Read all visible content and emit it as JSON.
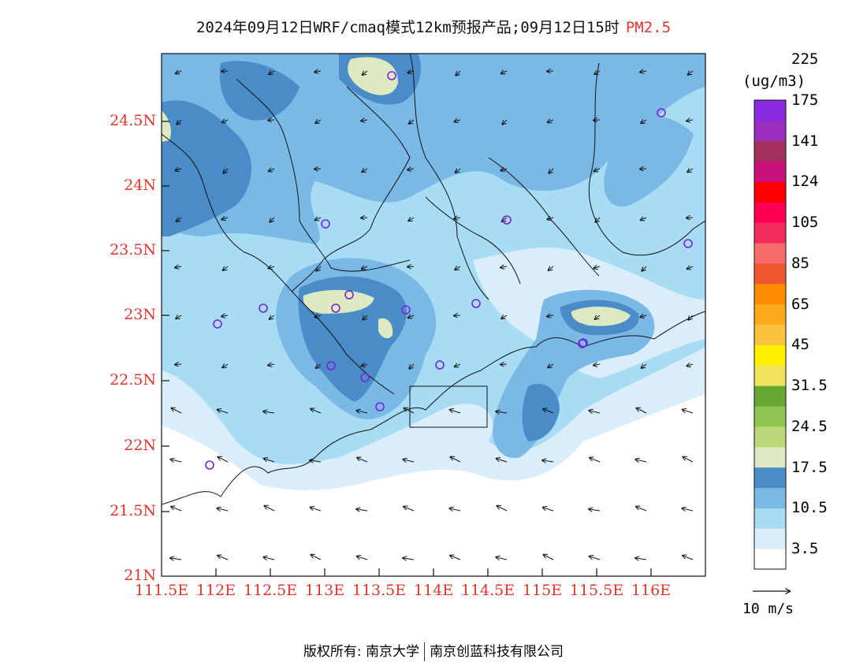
{
  "title": {
    "main": "2024年09月12日WRF/cmaq模式12km预报产品;09月12日15时",
    "variable": "PM2.5",
    "variable_color": "#e8332b"
  },
  "axes": {
    "lat_ticks": [
      "24.5N",
      "24N",
      "23.5N",
      "23N",
      "22.5N",
      "22N",
      "21.5N",
      "21N"
    ],
    "lon_ticks": [
      "111.5E",
      "112E",
      "112.5E",
      "113E",
      "113.5E",
      "114E",
      "114.5E",
      "115E",
      "115.5E",
      "116E"
    ],
    "tick_color": "#e8332b"
  },
  "colorbar": {
    "unit": "(ug/m3)",
    "colors": [
      "#ffffff",
      "#d9eefa",
      "#a8dcf5",
      "#7ab8e6",
      "#4a8cc8",
      "#dde9c0",
      "#bcd97a",
      "#8fc653",
      "#66a832",
      "#f0e25a",
      "#ffef00",
      "#f9c23c",
      "#fca91e",
      "#ff8c00",
      "#f0562e",
      "#f96a6a",
      "#f22c5b",
      "#ff0052",
      "#ff0000",
      "#c8117a",
      "#a3305c",
      "#9b2fbf",
      "#8a2be2"
    ],
    "labels": [
      "3.5",
      "10.5",
      "17.5",
      "24.5",
      "31.5",
      "45",
      "65",
      "85",
      "105",
      "124",
      "141",
      "175",
      "225"
    ]
  },
  "wind_key": {
    "label": "10 m/s"
  },
  "footer": {
    "copyright": "版权所有: 南京大学",
    "company": "南京创蓝科技有限公司"
  },
  "stations": [
    "s1",
    "s2",
    "s3",
    "s4",
    "s5",
    "s6",
    "s7",
    "s8",
    "s9",
    "s10",
    "s11",
    "s12",
    "s13",
    "s14",
    "s15",
    "s16",
    "s17",
    "s18"
  ]
}
